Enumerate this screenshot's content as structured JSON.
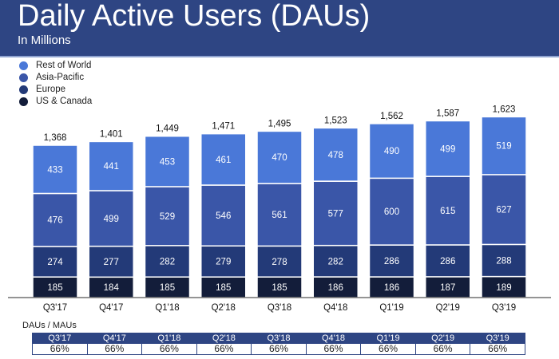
{
  "header": {
    "title": "Daily Active Users (DAUs)",
    "subtitle": "In Millions"
  },
  "chart_data": {
    "type": "bar",
    "stacked": true,
    "title": "Daily Active Users (DAUs)",
    "subtitle": "In Millions",
    "categories": [
      "Q3'17",
      "Q4'17",
      "Q1'18",
      "Q2'18",
      "Q3'18",
      "Q4'18",
      "Q1'19",
      "Q2'19",
      "Q3'19"
    ],
    "series": [
      {
        "name": "US & Canada",
        "color": "#131d3a",
        "values": [
          185,
          184,
          185,
          185,
          185,
          186,
          186,
          187,
          189
        ]
      },
      {
        "name": "Europe",
        "color": "#233a78",
        "values": [
          274,
          277,
          282,
          279,
          278,
          282,
          286,
          286,
          288
        ]
      },
      {
        "name": "Asia-Pacific",
        "color": "#3a56a8",
        "values": [
          476,
          499,
          529,
          546,
          561,
          577,
          600,
          615,
          627
        ]
      },
      {
        "name": "Rest of World",
        "color": "#4a78d8",
        "values": [
          433,
          441,
          453,
          461,
          470,
          478,
          490,
          499,
          519
        ]
      }
    ],
    "totals": [
      "1,368",
      "1,401",
      "1,449",
      "1,471",
      "1,495",
      "1,523",
      "1,562",
      "1,587",
      "1,623"
    ],
    "legend_position": "top-left",
    "grid": false
  },
  "legend": [
    "Rest of World",
    "Asia-Pacific",
    "Europe",
    "US & Canada"
  ],
  "ratio_table": {
    "label": "DAUs / MAUs",
    "headers": [
      "Q3'17",
      "Q4'17",
      "Q1'18",
      "Q2'18",
      "Q3'18",
      "Q4'18",
      "Q1'19",
      "Q2'19",
      "Q3'19"
    ],
    "values": [
      "66%",
      "66%",
      "66%",
      "66%",
      "66%",
      "66%",
      "66%",
      "66%",
      "66%"
    ]
  }
}
